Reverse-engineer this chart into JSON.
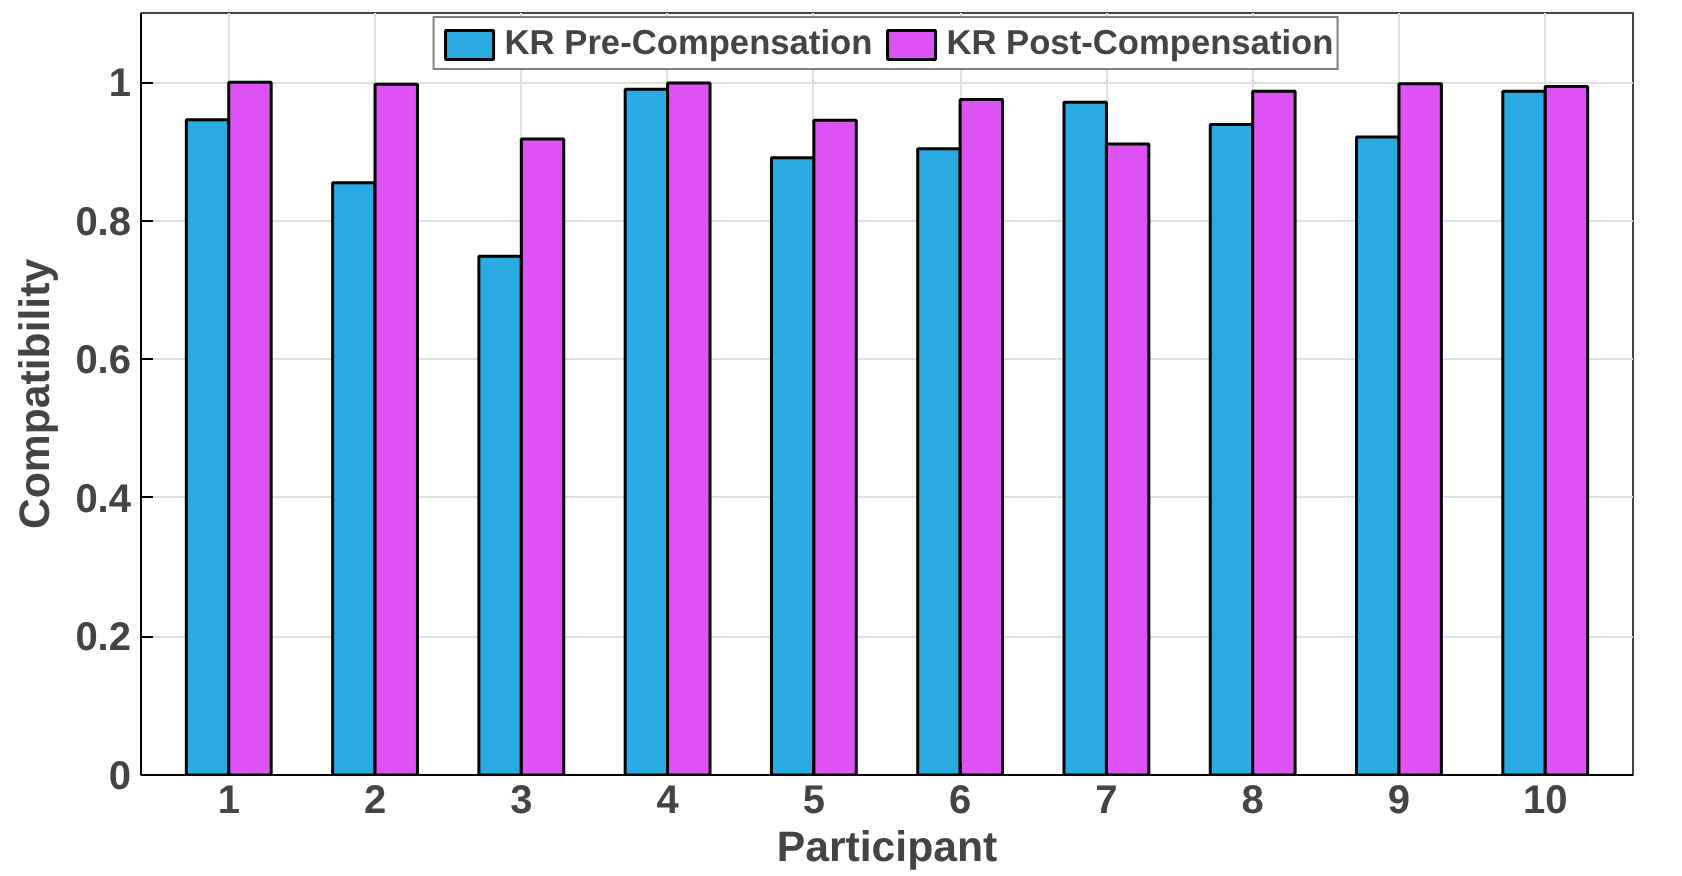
{
  "chart_data": {
    "type": "bar",
    "xlabel": "Participant",
    "ylabel": "Compatibility",
    "categories": [
      "1",
      "2",
      "3",
      "4",
      "5",
      "6",
      "7",
      "8",
      "9",
      "10"
    ],
    "series": [
      {
        "name": "KR Pre-Compensation",
        "color": "#29abe2",
        "values": [
          0.946,
          0.855,
          0.749,
          0.99,
          0.891,
          0.904,
          0.971,
          0.939,
          0.921,
          0.987
        ]
      },
      {
        "name": "KR Post-Compensation",
        "color": "#df52f5",
        "values": [
          1.0,
          0.997,
          0.918,
          0.999,
          0.945,
          0.975,
          0.911,
          0.987,
          0.998,
          0.994
        ]
      }
    ],
    "ylim": [
      0,
      1.1
    ],
    "yticks": [
      0,
      0.2,
      0.4,
      0.6,
      0.8,
      1
    ],
    "grid": true,
    "legend": "top"
  }
}
